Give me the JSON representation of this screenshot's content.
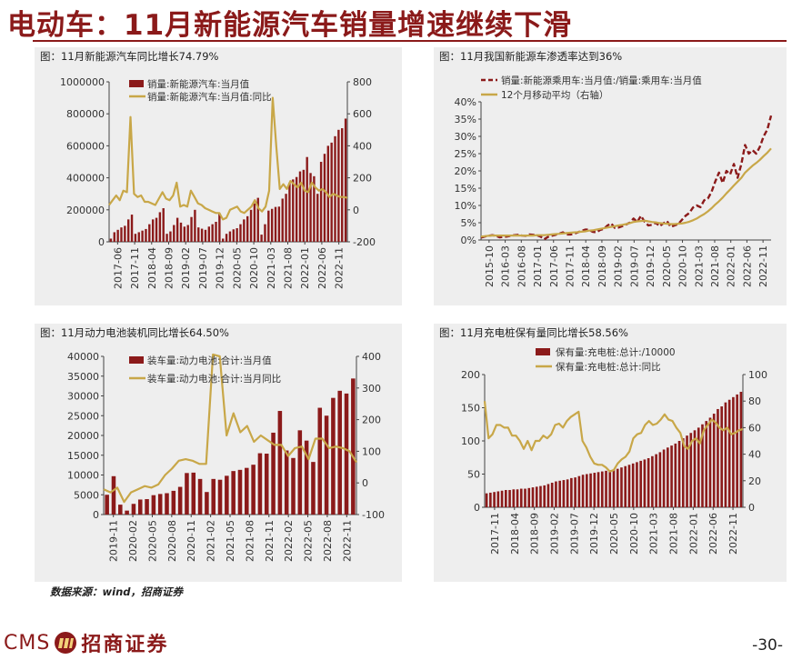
{
  "page": {
    "title": "电动车：11月新能源汽车销量增速继续下滑",
    "source": "数据来源：wind，招商证券",
    "page_number": "-30-",
    "logo": {
      "cms": "CMS",
      "name": "招商证券"
    }
  },
  "colors": {
    "bar": "#8b1a1a",
    "line": "#c8a748",
    "dash": "#8b1a1a",
    "accent": "#8b1a1a"
  },
  "chart_data": [
    {
      "id": "c1",
      "type": "bar+line",
      "title": "图：11月新能源汽车同比增长74.79%",
      "ticks_x": [
        "2017-06",
        "2017-11",
        "2018-04",
        "2018-09",
        "2019-02",
        "2019-07",
        "2019-12",
        "2020-05",
        "2020-10",
        "2021-03",
        "2021-08",
        "2022-01",
        "2022-06",
        "2022-11"
      ],
      "left_axis": {
        "ylim": [
          0,
          1000000
        ],
        "ticks": [
          "0",
          "200000",
          "400000",
          "600000",
          "800000",
          "1000000"
        ]
      },
      "right_axis": {
        "ylim": [
          -200,
          800
        ],
        "ticks": [
          "-200",
          "0",
          "200",
          "400",
          "600",
          "800"
        ]
      },
      "series": [
        {
          "name": "销量:新能源汽车:当月值",
          "kind": "bar",
          "axis": "left",
          "values": [
            20000,
            60000,
            75000,
            90000,
            100000,
            140000,
            170000,
            50000,
            60000,
            70000,
            80000,
            110000,
            140000,
            150000,
            185000,
            210000,
            50000,
            65000,
            105000,
            150000,
            120000,
            95000,
            105000,
            155000,
            200000,
            90000,
            82000,
            75000,
            95000,
            110000,
            125000,
            180000,
            20000,
            50000,
            65000,
            78000,
            85000,
            110000,
            140000,
            160000,
            200000,
            240000,
            275000,
            45000,
            110000,
            195000,
            206000,
            218000,
            220000,
            270000,
            300000,
            370000,
            390000,
            405000,
            440000,
            450000,
            530000,
            430000,
            410000,
            300000,
            500000,
            550000,
            600000,
            620000,
            660000,
            700000,
            710000,
            770000
          ]
        },
        {
          "name": "销量:新能源汽车:当月值:同比",
          "kind": "line",
          "axis": "right",
          "values": [
            30,
            60,
            90,
            60,
            120,
            110,
            580,
            100,
            80,
            90,
            50,
            50,
            40,
            30,
            70,
            110,
            70,
            60,
            90,
            170,
            20,
            30,
            20,
            120,
            80,
            40,
            30,
            10,
            0,
            -10,
            -20,
            -20,
            -60,
            -50,
            0,
            10,
            20,
            -10,
            -20,
            0,
            20,
            60,
            10,
            -10,
            20,
            120,
            700,
            400,
            130,
            160,
            130,
            180,
            160,
            140,
            170,
            120,
            110,
            170,
            140,
            120,
            130,
            110,
            80,
            100,
            90,
            80,
            80,
            75
          ]
        }
      ]
    },
    {
      "id": "c2",
      "type": "line",
      "title": "图：11月我国新能源车渗透率达到36%",
      "ticks_x": [
        "2015-10",
        "2016-03",
        "2016-08",
        "2017-01",
        "2017-06",
        "2017-11",
        "2018-04",
        "2018-09",
        "2019-02",
        "2019-07",
        "2019-12",
        "2020-05",
        "2020-10",
        "2021-03",
        "2021-08",
        "2022-01",
        "2022-06",
        "2022-11"
      ],
      "left_axis": {
        "ylim": [
          0,
          40
        ],
        "ticks": [
          "0%",
          "5%",
          "10%",
          "15%",
          "20%",
          "25%",
          "30%",
          "35%",
          "40%"
        ]
      },
      "series": [
        {
          "name": "销量:新能源乘用车:当月值:/销量:乘用车:当月值",
          "kind": "dash",
          "values": [
            0.7,
            1.0,
            1.2,
            1.4,
            1.2,
            0.8,
            0.9,
            1.0,
            1.2,
            1.4,
            1.5,
            1.3,
            1.2,
            1.6,
            1.5,
            1.4,
            1.0,
            0.2,
            0.9,
            1.2,
            1.5,
            1.8,
            2.2,
            1.6,
            1.6,
            1.8,
            2.2,
            2.6,
            3.0,
            3.0,
            2.4,
            2.2,
            2.9,
            3.2,
            4.2,
            4.8,
            3.5,
            3.6,
            4.0,
            4.5,
            5.0,
            6.2,
            5.2,
            7.0,
            5.3,
            4.2,
            4.4,
            5.0,
            4.0,
            4.8,
            5.5,
            3.8,
            4.2,
            4.6,
            5.8,
            7.0,
            7.8,
            9.4,
            10.0,
            9.5,
            11.5,
            12.0,
            14.0,
            17.0,
            19.5,
            16.5,
            20.0,
            19.0,
            22.0,
            18.0,
            22.0,
            27.5,
            25.0,
            26.0,
            25.0,
            27.0,
            30.0,
            32.0,
            36.0
          ]
        },
        {
          "name": "12个月移动平均（右轴）",
          "kind": "line",
          "values": [
            1.0,
            1.1,
            1.2,
            1.3,
            1.3,
            1.3,
            1.3,
            1.3,
            1.3,
            1.3,
            1.3,
            1.3,
            1.3,
            1.3,
            1.3,
            1.4,
            1.4,
            1.4,
            1.5,
            1.6,
            1.7,
            1.8,
            1.9,
            2.0,
            2.1,
            2.2,
            2.3,
            2.4,
            2.5,
            2.7,
            2.8,
            3.0,
            3.2,
            3.4,
            3.6,
            3.8,
            4.0,
            4.2,
            4.4,
            4.6,
            4.9,
            5.2,
            5.4,
            5.5,
            5.6,
            5.4,
            5.2,
            5.1,
            4.9,
            4.8,
            4.7,
            4.6,
            4.6,
            4.7,
            4.8,
            5.0,
            5.3,
            5.7,
            6.2,
            6.9,
            7.5,
            8.3,
            9.2,
            10.3,
            11.2,
            12.3,
            13.5,
            14.6,
            15.8,
            16.9,
            18.0,
            19.5,
            20.5,
            21.5,
            22.3,
            23.2,
            24.3,
            25.3,
            26.5
          ]
        }
      ]
    },
    {
      "id": "c3",
      "type": "bar+line",
      "title": "图：11月动力电池装机同比增长64.50%",
      "ticks_x": [
        "2019-11",
        "2020-02",
        "2020-05",
        "2020-08",
        "2020-11",
        "2021-02",
        "2021-05",
        "2021-08",
        "2021-11",
        "2022-02",
        "2022-05",
        "2022-08",
        "2022-11"
      ],
      "left_axis": {
        "ylim": [
          0,
          40000
        ],
        "ticks": [
          "0",
          "5000",
          "10000",
          "15000",
          "20000",
          "25000",
          "30000",
          "35000",
          "40000"
        ]
      },
      "right_axis": {
        "ylim": [
          -100,
          400
        ],
        "ticks": [
          "-100",
          "0",
          "100",
          "200",
          "300",
          "400"
        ]
      },
      "series": [
        {
          "name": "装车量:动力电池:合计:当月值",
          "kind": "bar",
          "axis": "left",
          "values": [
            5000,
            9700,
            2500,
            1000,
            2700,
            3800,
            3900,
            4900,
            5200,
            5400,
            6000,
            7000,
            10500,
            10600,
            9000,
            5700,
            9000,
            8800,
            9800,
            11000,
            11300,
            11800,
            12600,
            15500,
            15400,
            20700,
            26200,
            16200,
            14300,
            21300,
            18700,
            13300,
            27000,
            25000,
            29500,
            31300,
            30600,
            34400
          ]
        },
        {
          "name": "装车量:动力电池:合计:当月同比",
          "kind": "line",
          "axis": "right",
          "values": [
            -20,
            -30,
            -15,
            -60,
            -30,
            -20,
            -10,
            -15,
            -5,
            25,
            45,
            70,
            75,
            70,
            60,
            60,
            420,
            400,
            150,
            220,
            160,
            180,
            130,
            150,
            135,
            120,
            120,
            85,
            110,
            115,
            75,
            140,
            140,
            110,
            115,
            110,
            100,
            65
          ]
        }
      ]
    },
    {
      "id": "c4",
      "type": "bar+line",
      "title": "图：11月充电桩保有量同比增长58.56%",
      "ticks_x": [
        "2017-11",
        "2018-04",
        "2018-09",
        "2019-02",
        "2019-07",
        "2019-12",
        "2020-05",
        "2020-10",
        "2021-03",
        "2021-08",
        "2022-01",
        "2022-06",
        "2022-11"
      ],
      "left_axis": {
        "ylim": [
          0,
          200
        ],
        "ticks": [
          "0",
          "50",
          "100",
          "150",
          "200"
        ]
      },
      "right_axis": {
        "ylim": [
          0,
          100
        ],
        "ticks": [
          "0",
          "20",
          "40",
          "60",
          "80",
          "100"
        ]
      },
      "series": [
        {
          "name": "保有量:充电桩:总计:/10000",
          "kind": "bar",
          "axis": "left",
          "values": [
            21,
            22,
            23,
            24,
            25,
            26,
            26,
            27,
            27,
            28,
            28,
            29,
            30,
            31,
            32,
            33,
            35,
            37,
            39,
            40,
            41,
            42,
            44,
            45,
            47,
            49,
            50,
            51,
            52,
            53,
            54,
            55,
            56,
            57,
            58,
            60,
            62,
            64,
            66,
            68,
            70,
            72,
            74,
            77,
            80,
            83,
            87,
            90,
            93,
            96,
            100,
            104,
            108,
            112,
            116,
            120,
            125,
            130,
            135,
            141,
            148,
            152,
            158,
            162,
            166,
            170,
            174
          ]
        },
        {
          "name": "保有量:充电桩:总计:同比",
          "kind": "line",
          "axis": "right",
          "values": [
            80,
            52,
            55,
            62,
            62,
            60,
            60,
            54,
            54,
            50,
            44,
            50,
            43,
            50,
            50,
            54,
            52,
            55,
            62,
            63,
            60,
            65,
            68,
            70,
            72,
            50,
            45,
            38,
            33,
            32,
            32,
            30,
            27,
            28,
            33,
            36,
            38,
            42,
            52,
            55,
            56,
            62,
            65,
            62,
            63,
            66,
            70,
            66,
            65,
            60,
            56,
            46,
            44,
            50,
            52,
            48,
            58,
            62,
            66,
            64,
            60,
            58,
            60,
            55,
            56,
            58,
            59
          ]
        }
      ]
    }
  ],
  "legends": {
    "c1": [
      "销量:新能源汽车:当月值",
      "销量:新能源汽车:当月值:同比"
    ],
    "c2": [
      "销量:新能源乘用车:当月值:/销量:乘用车:当月值",
      "12个月移动平均（右轴）"
    ],
    "c3": [
      "装车量:动力电池:合计:当月值",
      "装车量:动力电池:合计:当月同比"
    ],
    "c4": [
      "保有量:充电桩:总计:/10000",
      "保有量:充电桩:总计:同比"
    ]
  }
}
